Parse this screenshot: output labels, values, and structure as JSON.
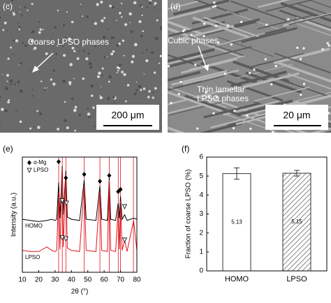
{
  "images": [
    {
      "label": "(c)",
      "annotations": [
        "Coarse LPSO phases"
      ],
      "scale_bar": "200 μm"
    },
    {
      "label": "(d)",
      "annotations": [
        "Cubic phases",
        "Thin lamellar LPSO phases"
      ],
      "scale_bar": "20 μm"
    }
  ],
  "chart_data": [
    {
      "type": "line",
      "label": "(e)",
      "x_label": "2θ (°)",
      "y_label": "Intensity (a.u.)",
      "x": [
        10,
        15,
        20,
        25,
        28,
        30,
        31,
        32.2,
        33,
        34.4,
        35,
        36.6,
        37.5,
        40,
        45,
        47.8,
        49,
        55,
        57.4,
        58.5,
        62,
        63.1,
        64,
        67,
        68.6,
        69.3,
        70,
        71,
        72.5,
        74,
        78,
        80
      ],
      "series": [
        {
          "name": "HOMO",
          "color": "#000000",
          "values": [
            46,
            45,
            44,
            45,
            46,
            45,
            46,
            78,
            47,
            92,
            50,
            88,
            48,
            46,
            45,
            80,
            46,
            45,
            75,
            46,
            45,
            82,
            46,
            45,
            60,
            47,
            66,
            46,
            50,
            45,
            47,
            46
          ]
        },
        {
          "name": "LPSO",
          "color": "#e0141e",
          "values": [
            19,
            18,
            18,
            22,
            19,
            18,
            19,
            70,
            20,
            90,
            22,
            85,
            21,
            19,
            18,
            75,
            19,
            18,
            70,
            19,
            18,
            80,
            19,
            18,
            55,
            20,
            62,
            19,
            28,
            18,
            45,
            19
          ]
        }
      ],
      "reference_lines": {
        "color": "#e0141e",
        "x": [
          32.2,
          34.4,
          36.6,
          47.8,
          57.4,
          63.1,
          68.6,
          70,
          77.9
        ]
      },
      "markers": [
        {
          "name": "α-Mg",
          "symbol": "diamond",
          "x": [
            32.2,
            36.6,
            47.8,
            57.4,
            63.1,
            68.6,
            70
          ],
          "y": [
            96,
            82,
            85,
            79,
            84,
            70,
            72
          ]
        },
        {
          "name": "LPSO",
          "symbol": "triangle",
          "x": [
            34.4,
            37,
            72.5,
            34.4,
            36.6,
            72.5
          ],
          "y": [
            62,
            60,
            57,
            30,
            29,
            28
          ]
        }
      ],
      "xlim": [
        10,
        80
      ],
      "xticks": [
        10,
        20,
        30,
        40,
        50,
        60,
        70,
        80
      ],
      "ylim": [
        0,
        100
      ]
    },
    {
      "type": "bar",
      "label": "(f)",
      "y_label": "Fraction of coarse LPSO (%)",
      "categories": [
        "HOMO",
        "LPSO"
      ],
      "values": [
        5.13,
        5.15
      ],
      "errors": [
        0.3,
        0.15
      ],
      "patterns": [
        "none",
        "hatch"
      ],
      "color": "#333333",
      "ylim": [
        0,
        6
      ],
      "yticks": [
        0,
        1,
        2,
        3,
        4,
        5,
        6
      ]
    }
  ]
}
